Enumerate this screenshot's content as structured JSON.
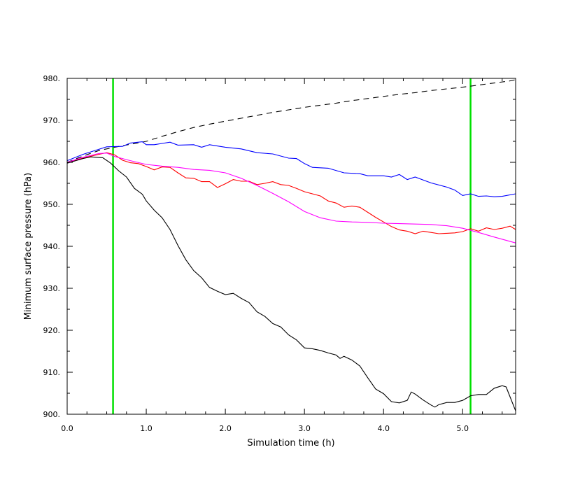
{
  "chart_data": {
    "type": "line",
    "title": "",
    "xlabel": "Simulation time (h)",
    "ylabel": "Minimum surface pressure (hPa)",
    "xlim": [
      0,
      5.67
    ],
    "ylim": [
      900,
      980
    ],
    "x_ticks": [
      0,
      1,
      2,
      3,
      4,
      5
    ],
    "x_tick_labels": [
      "0.0",
      "1.0",
      "2.0",
      "3.0",
      "4.0",
      "5.0"
    ],
    "y_ticks": [
      900,
      910,
      920,
      930,
      940,
      950,
      960,
      970,
      980
    ],
    "y_tick_labels": [
      "900.",
      "910.",
      "920.",
      "930.",
      "940.",
      "950.",
      "960.",
      "970.",
      "980."
    ],
    "grid": false,
    "legend": "none",
    "vertical_lines": [
      {
        "x": 0.58,
        "color": "#00e000"
      },
      {
        "x": 5.1,
        "color": "#00e000"
      }
    ],
    "series": [
      {
        "color": "#000000",
        "dash": "8,6",
        "points": [
          [
            0,
            960.0
          ],
          [
            0.2,
            961.5
          ],
          [
            0.4,
            962.8
          ],
          [
            0.6,
            963.6
          ],
          [
            0.8,
            964.3
          ],
          [
            1.0,
            965.0
          ],
          [
            1.2,
            966.2
          ],
          [
            1.4,
            967.3
          ],
          [
            1.6,
            968.3
          ],
          [
            1.8,
            969.1
          ],
          [
            2.0,
            969.8
          ],
          [
            2.2,
            970.5
          ],
          [
            2.4,
            971.2
          ],
          [
            2.6,
            971.9
          ],
          [
            2.8,
            972.5
          ],
          [
            3.0,
            973.1
          ],
          [
            3.2,
            973.6
          ],
          [
            3.4,
            974.1
          ],
          [
            3.6,
            974.7
          ],
          [
            3.8,
            975.2
          ],
          [
            4.0,
            975.7
          ],
          [
            4.2,
            976.2
          ],
          [
            4.4,
            976.6
          ],
          [
            4.6,
            977.1
          ],
          [
            4.8,
            977.5
          ],
          [
            5.0,
            977.9
          ],
          [
            5.2,
            978.4
          ],
          [
            5.4,
            978.9
          ],
          [
            5.6,
            979.4
          ],
          [
            5.67,
            979.7
          ]
        ]
      },
      {
        "color": "#0000ff",
        "dash": "",
        "points": [
          [
            0,
            960.4
          ],
          [
            0.2,
            961.9
          ],
          [
            0.4,
            963.1
          ],
          [
            0.5,
            963.7
          ],
          [
            0.7,
            963.8
          ],
          [
            0.8,
            964.6
          ],
          [
            0.95,
            964.9
          ],
          [
            1.0,
            964.2
          ],
          [
            1.1,
            964.2
          ],
          [
            1.2,
            964.5
          ],
          [
            1.3,
            964.8
          ],
          [
            1.4,
            964.1
          ],
          [
            1.6,
            964.2
          ],
          [
            1.7,
            963.6
          ],
          [
            1.8,
            964.2
          ],
          [
            2.0,
            963.6
          ],
          [
            2.2,
            963.2
          ],
          [
            2.4,
            962.3
          ],
          [
            2.6,
            962.0
          ],
          [
            2.8,
            961.0
          ],
          [
            2.9,
            960.9
          ],
          [
            3.0,
            959.7
          ],
          [
            3.1,
            958.8
          ],
          [
            3.3,
            958.6
          ],
          [
            3.5,
            957.5
          ],
          [
            3.7,
            957.3
          ],
          [
            3.8,
            956.8
          ],
          [
            4.0,
            956.8
          ],
          [
            4.1,
            956.5
          ],
          [
            4.2,
            957.1
          ],
          [
            4.3,
            955.9
          ],
          [
            4.4,
            956.5
          ],
          [
            4.6,
            955.1
          ],
          [
            4.8,
            954.1
          ],
          [
            4.9,
            953.4
          ],
          [
            5.0,
            952.1
          ],
          [
            5.1,
            952.5
          ],
          [
            5.2,
            951.9
          ],
          [
            5.3,
            952.0
          ],
          [
            5.4,
            951.8
          ],
          [
            5.5,
            951.9
          ],
          [
            5.67,
            952.5
          ]
        ]
      },
      {
        "color": "#ff0000",
        "dash": "",
        "points": [
          [
            0,
            960.0
          ],
          [
            0.2,
            961.0
          ],
          [
            0.4,
            961.9
          ],
          [
            0.5,
            962.3
          ],
          [
            0.6,
            961.8
          ],
          [
            0.7,
            960.5
          ],
          [
            0.8,
            959.9
          ],
          [
            0.9,
            959.7
          ],
          [
            1.0,
            959.0
          ],
          [
            1.1,
            958.2
          ],
          [
            1.2,
            958.9
          ],
          [
            1.3,
            958.8
          ],
          [
            1.4,
            957.5
          ],
          [
            1.5,
            956.3
          ],
          [
            1.6,
            956.2
          ],
          [
            1.7,
            955.4
          ],
          [
            1.8,
            955.4
          ],
          [
            1.9,
            954.0
          ],
          [
            2.0,
            954.9
          ],
          [
            2.1,
            955.9
          ],
          [
            2.2,
            955.5
          ],
          [
            2.3,
            955.5
          ],
          [
            2.4,
            954.7
          ],
          [
            2.5,
            955.0
          ],
          [
            2.6,
            955.4
          ],
          [
            2.7,
            954.7
          ],
          [
            2.8,
            954.5
          ],
          [
            2.9,
            953.8
          ],
          [
            3.0,
            953.0
          ],
          [
            3.2,
            952.0
          ],
          [
            3.3,
            950.8
          ],
          [
            3.4,
            950.3
          ],
          [
            3.5,
            949.3
          ],
          [
            3.6,
            949.6
          ],
          [
            3.7,
            949.3
          ],
          [
            3.8,
            948.1
          ],
          [
            3.9,
            946.9
          ],
          [
            4.0,
            945.8
          ],
          [
            4.1,
            944.7
          ],
          [
            4.2,
            943.9
          ],
          [
            4.3,
            943.6
          ],
          [
            4.4,
            943.0
          ],
          [
            4.5,
            943.6
          ],
          [
            4.6,
            943.3
          ],
          [
            4.7,
            943.0
          ],
          [
            4.8,
            943.1
          ],
          [
            4.9,
            943.2
          ],
          [
            5.0,
            943.5
          ],
          [
            5.1,
            944.2
          ],
          [
            5.2,
            943.6
          ],
          [
            5.3,
            944.4
          ],
          [
            5.4,
            944.0
          ],
          [
            5.5,
            944.3
          ],
          [
            5.6,
            944.8
          ],
          [
            5.67,
            944.0
          ]
        ]
      },
      {
        "color": "#ff00ff",
        "dash": "",
        "points": [
          [
            0,
            960.0
          ],
          [
            0.2,
            961.2
          ],
          [
            0.4,
            962.1
          ],
          [
            0.5,
            962.2
          ],
          [
            0.6,
            961.4
          ],
          [
            0.8,
            960.4
          ],
          [
            1.0,
            959.5
          ],
          [
            1.2,
            959.1
          ],
          [
            1.4,
            958.8
          ],
          [
            1.6,
            958.3
          ],
          [
            1.8,
            958.1
          ],
          [
            2.0,
            957.5
          ],
          [
            2.2,
            956.2
          ],
          [
            2.4,
            954.5
          ],
          [
            2.6,
            952.6
          ],
          [
            2.8,
            950.6
          ],
          [
            3.0,
            948.3
          ],
          [
            3.2,
            946.8
          ],
          [
            3.4,
            946.0
          ],
          [
            3.6,
            945.8
          ],
          [
            3.8,
            945.7
          ],
          [
            4.0,
            945.5
          ],
          [
            4.2,
            945.4
          ],
          [
            4.4,
            945.3
          ],
          [
            4.6,
            945.2
          ],
          [
            4.8,
            944.9
          ],
          [
            5.0,
            944.3
          ],
          [
            5.2,
            943.3
          ],
          [
            5.4,
            942.2
          ],
          [
            5.67,
            940.8
          ]
        ]
      },
      {
        "color": "#000000",
        "dash": "",
        "points": [
          [
            0,
            959.8
          ],
          [
            0.2,
            960.9
          ],
          [
            0.3,
            961.3
          ],
          [
            0.45,
            961.1
          ],
          [
            0.55,
            959.8
          ],
          [
            0.65,
            958.0
          ],
          [
            0.75,
            956.5
          ],
          [
            0.85,
            953.8
          ],
          [
            0.95,
            952.4
          ],
          [
            1.0,
            950.8
          ],
          [
            1.1,
            948.6
          ],
          [
            1.2,
            946.8
          ],
          [
            1.3,
            944.0
          ],
          [
            1.4,
            940.2
          ],
          [
            1.5,
            936.8
          ],
          [
            1.6,
            934.2
          ],
          [
            1.7,
            932.5
          ],
          [
            1.8,
            930.2
          ],
          [
            1.9,
            929.3
          ],
          [
            2.0,
            928.5
          ],
          [
            2.1,
            928.8
          ],
          [
            2.2,
            927.6
          ],
          [
            2.3,
            926.6
          ],
          [
            2.4,
            924.4
          ],
          [
            2.5,
            923.3
          ],
          [
            2.6,
            921.6
          ],
          [
            2.7,
            920.8
          ],
          [
            2.8,
            918.9
          ],
          [
            2.9,
            917.7
          ],
          [
            3.0,
            915.8
          ],
          [
            3.1,
            915.6
          ],
          [
            3.2,
            915.2
          ],
          [
            3.3,
            914.6
          ],
          [
            3.4,
            914.1
          ],
          [
            3.45,
            913.3
          ],
          [
            3.5,
            913.8
          ],
          [
            3.6,
            912.9
          ],
          [
            3.7,
            911.5
          ],
          [
            3.8,
            908.7
          ],
          [
            3.9,
            906.0
          ],
          [
            4.0,
            904.9
          ],
          [
            4.1,
            903.0
          ],
          [
            4.2,
            902.7
          ],
          [
            4.3,
            903.3
          ],
          [
            4.35,
            905.3
          ],
          [
            4.4,
            904.8
          ],
          [
            4.5,
            903.4
          ],
          [
            4.6,
            902.2
          ],
          [
            4.65,
            901.7
          ],
          [
            4.7,
            902.3
          ],
          [
            4.8,
            902.8
          ],
          [
            4.9,
            902.8
          ],
          [
            5.0,
            903.3
          ],
          [
            5.1,
            904.4
          ],
          [
            5.2,
            904.7
          ],
          [
            5.3,
            904.7
          ],
          [
            5.4,
            906.2
          ],
          [
            5.5,
            906.8
          ],
          [
            5.55,
            906.5
          ],
          [
            5.67,
            900.8
          ]
        ]
      }
    ]
  }
}
